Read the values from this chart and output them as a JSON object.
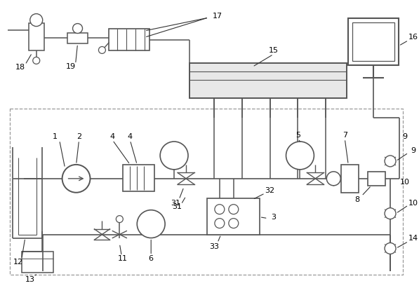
{
  "bg_color": "#ffffff",
  "line_color": "#555555",
  "dashed_color": "#999999",
  "label_color": "#000000",
  "fig_width": 5.97,
  "fig_height": 4.11,
  "dpi": 100
}
